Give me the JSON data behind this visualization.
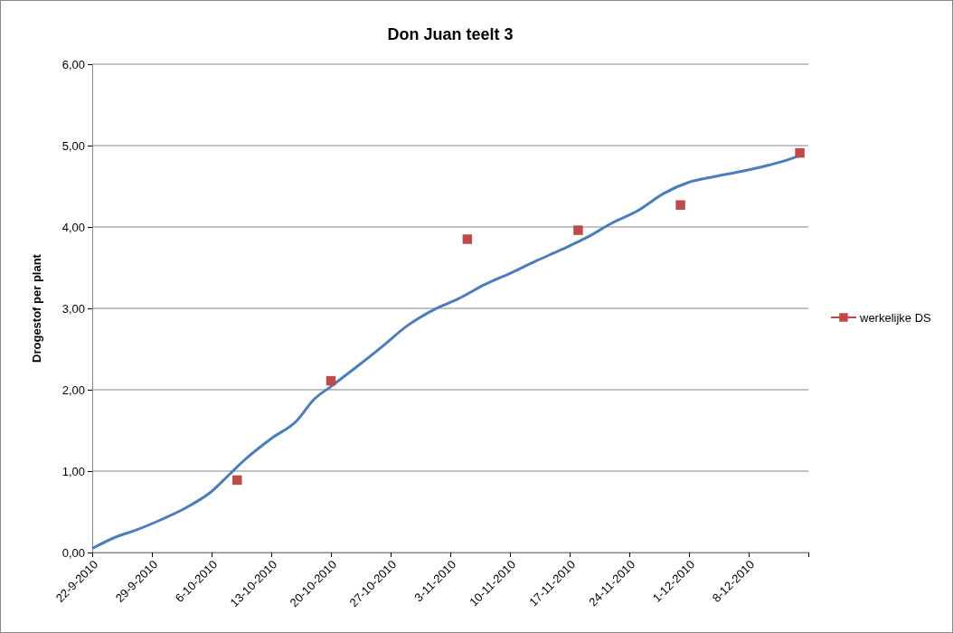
{
  "chart_data": {
    "type": "line",
    "title": "Don Juan teelt 3",
    "ylabel": "Drogestof per plant",
    "xlim": [
      "2010-09-22",
      "2010-12-15"
    ],
    "xticks": [
      {
        "value": "2010-09-22",
        "label": "22-9-2010"
      },
      {
        "value": "2010-09-29",
        "label": "29-9-2010"
      },
      {
        "value": "2010-10-06",
        "label": "6-10-2010"
      },
      {
        "value": "2010-10-13",
        "label": "13-10-2010"
      },
      {
        "value": "2010-10-20",
        "label": "20-10-2010"
      },
      {
        "value": "2010-10-27",
        "label": "27-10-2010"
      },
      {
        "value": "2010-11-03",
        "label": "3-11-2010"
      },
      {
        "value": "2010-11-10",
        "label": "10-11-2010"
      },
      {
        "value": "2010-11-17",
        "label": "17-11-2010"
      },
      {
        "value": "2010-11-24",
        "label": "24-11-2010"
      },
      {
        "value": "2010-12-01",
        "label": "1-12-2010"
      },
      {
        "value": "2010-12-08",
        "label": "8-12-2010"
      },
      {
        "value": "2010-12-15",
        "label": null
      }
    ],
    "ylim": [
      0,
      6
    ],
    "yticks": [
      {
        "value": 0,
        "label": "0,00"
      },
      {
        "value": 1,
        "label": "1,00"
      },
      {
        "value": 2,
        "label": "2,00"
      },
      {
        "value": 3,
        "label": "3,00"
      },
      {
        "value": 4,
        "label": "4,00"
      },
      {
        "value": 5,
        "label": "5,00"
      },
      {
        "value": 6,
        "label": "6,00"
      }
    ],
    "grid": "y",
    "legend": "right",
    "series": [
      {
        "color": "#4a7ebb",
        "marker": "none",
        "x": [
          "2010-09-22",
          "2010-09-25",
          "2010-09-27",
          "2010-09-30",
          "2010-10-03",
          "2010-10-06",
          "2010-10-08",
          "2010-10-10",
          "2010-10-13",
          "2010-10-16",
          "2010-10-18",
          "2010-10-20",
          "2010-10-23",
          "2010-10-26",
          "2010-10-29",
          "2010-11-01",
          "2010-11-04",
          "2010-11-07",
          "2010-11-10",
          "2010-11-13",
          "2010-11-16",
          "2010-11-19",
          "2010-11-22",
          "2010-11-25",
          "2010-11-28",
          "2010-12-01",
          "2010-12-04",
          "2010-12-07",
          "2010-12-10",
          "2010-12-13",
          "2010-12-14"
        ],
        "values": [
          0.05,
          0.2,
          0.27,
          0.4,
          0.55,
          0.75,
          0.95,
          1.15,
          1.4,
          1.62,
          1.88,
          2.04,
          2.28,
          2.53,
          2.79,
          2.98,
          3.12,
          3.29,
          3.43,
          3.58,
          3.72,
          3.87,
          4.05,
          4.2,
          4.41,
          4.55,
          4.62,
          4.68,
          4.75,
          4.84,
          4.88
        ]
      },
      {
        "type": "scatter",
        "name": "werkelijke DS",
        "color": "#be4b48",
        "marker": "square",
        "x": [
          "2010-10-09",
          "2010-10-20",
          "2010-11-05",
          "2010-11-18",
          "2010-11-30",
          "2010-12-14"
        ],
        "values": [
          0.89,
          2.11,
          3.85,
          3.96,
          4.27,
          4.91
        ]
      }
    ]
  }
}
